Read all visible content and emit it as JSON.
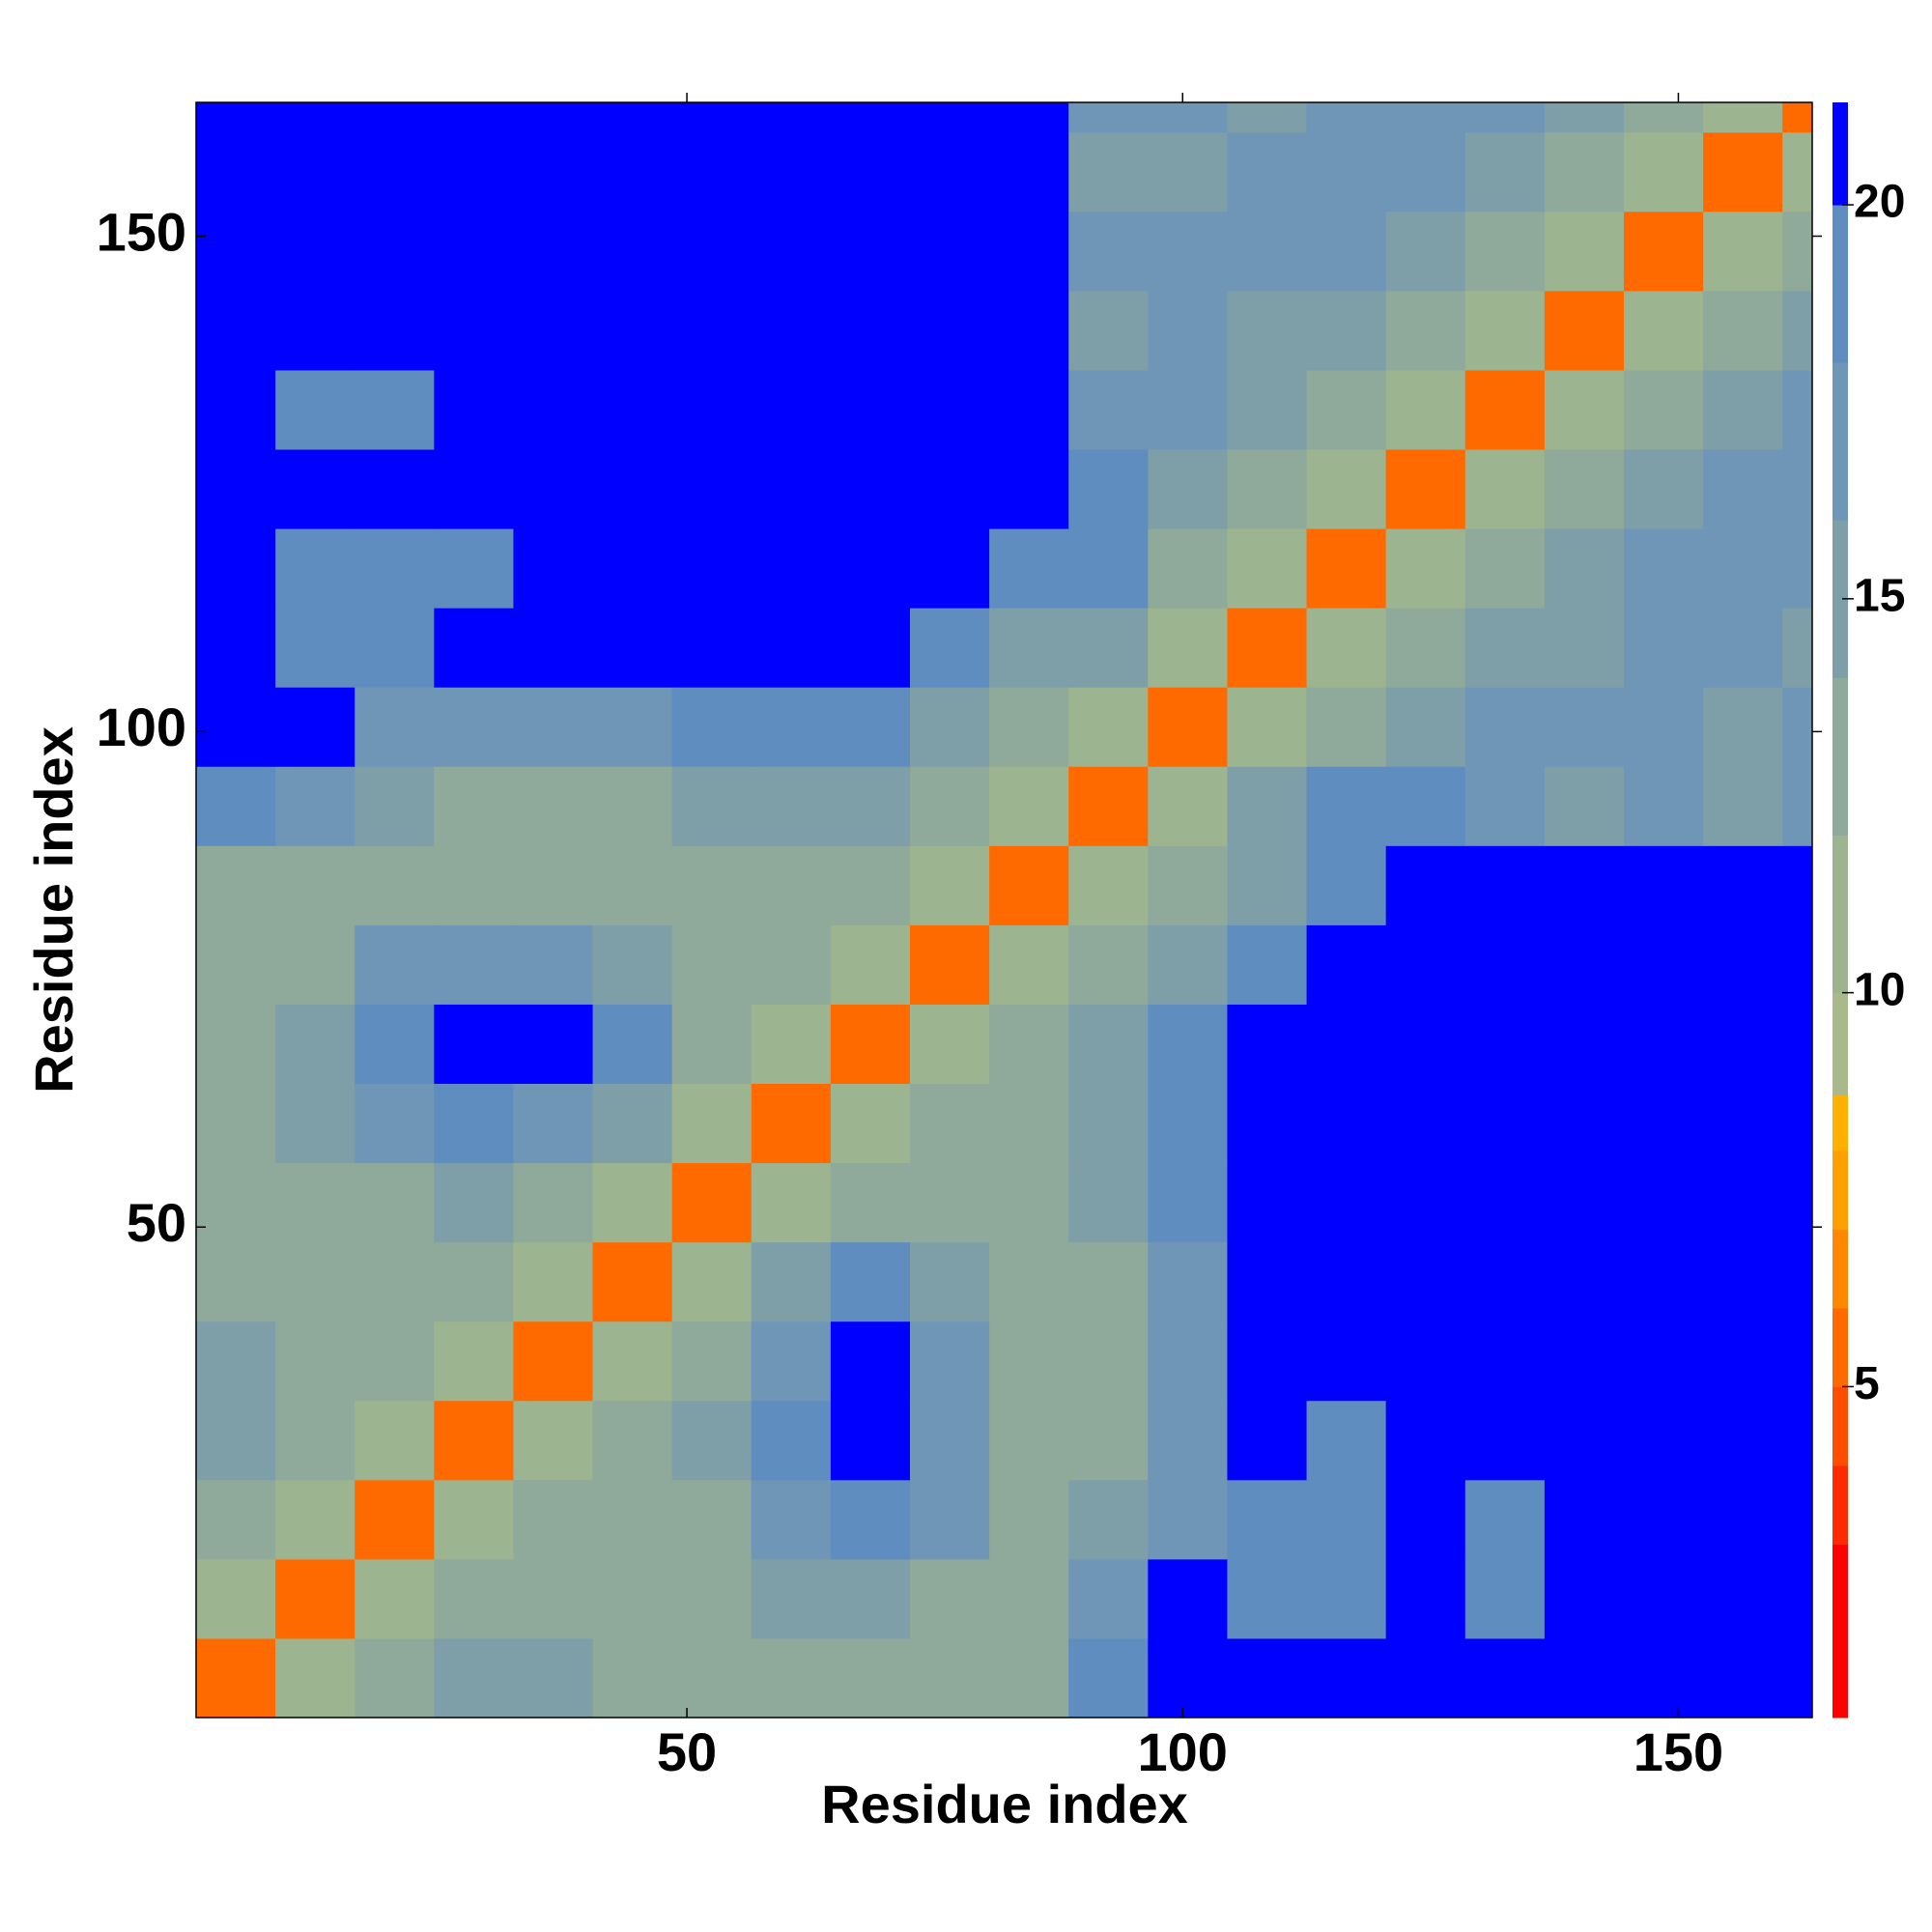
{
  "chart_data": {
    "type": "heatmap",
    "xlabel": "Residue index",
    "ylabel": "Residue index",
    "x_edges": [
      0.5,
      8.5,
      16.5,
      24.5,
      32.5,
      40.5,
      48.5,
      56.5,
      64.5,
      72.5,
      80.5,
      88.5,
      96.5,
      104.5,
      112.5,
      120.5,
      128.5,
      136.5,
      144.5,
      152.5,
      160.5,
      163.5
    ],
    "y_edges": [
      0.5,
      8.5,
      16.5,
      24.5,
      32.5,
      40.5,
      48.5,
      56.5,
      64.5,
      72.5,
      80.5,
      88.5,
      96.5,
      104.5,
      112.5,
      120.5,
      128.5,
      136.5,
      144.5,
      152.5,
      160.5,
      163.5
    ],
    "z": [
      [
        5,
        10,
        13,
        14,
        14,
        13,
        13,
        12,
        13,
        13,
        13,
        18,
        21,
        21,
        21,
        21,
        21,
        21,
        21,
        21,
        21
      ],
      [
        10,
        5,
        10,
        13,
        13,
        13,
        13,
        14,
        15,
        13,
        13,
        16,
        20,
        19,
        19,
        21,
        19,
        21,
        21,
        21,
        21
      ],
      [
        13,
        10,
        5,
        10,
        13,
        13,
        13,
        17,
        19,
        17,
        13,
        14,
        17,
        19,
        19,
        21,
        19,
        21,
        20,
        20,
        21
      ],
      [
        14,
        13,
        10,
        5,
        10,
        12,
        14,
        19,
        20,
        16,
        12,
        13,
        17,
        20,
        19,
        21,
        20,
        21,
        20,
        20,
        21
      ],
      [
        14,
        13,
        13,
        10,
        5,
        10,
        13,
        17,
        20,
        17,
        12,
        13,
        17,
        21,
        20,
        21,
        21,
        21,
        21,
        21,
        21
      ],
      [
        13,
        13,
        13,
        12,
        10,
        5,
        10,
        14,
        19,
        15,
        12,
        13,
        17,
        20,
        21,
        21,
        21,
        21,
        21,
        21,
        21
      ],
      [
        13,
        13,
        13,
        14,
        13,
        10,
        5,
        10,
        13,
        13,
        12,
        14,
        18,
        20,
        21,
        21,
        21,
        21,
        21,
        21,
        21
      ],
      [
        12,
        14,
        17,
        19,
        17,
        14,
        10,
        5,
        10,
        12,
        13,
        15,
        19,
        21,
        21,
        21,
        21,
        21,
        21,
        21,
        21
      ],
      [
        13,
        15,
        19,
        20,
        20,
        19,
        13,
        10,
        5,
        10,
        12,
        14,
        18,
        21,
        21,
        21,
        21,
        21,
        21,
        21,
        21
      ],
      [
        13,
        13,
        17,
        16,
        17,
        15,
        13,
        12,
        10,
        5,
        10,
        12,
        15,
        19,
        21,
        21,
        21,
        21,
        21,
        21,
        21
      ],
      [
        13,
        13,
        13,
        12,
        12,
        12,
        12,
        13,
        12,
        10,
        5,
        10,
        12,
        15,
        18,
        20,
        21,
        21,
        21,
        21,
        21
      ],
      [
        18,
        16,
        14,
        13,
        13,
        13,
        14,
        15,
        14,
        12,
        10,
        5,
        10,
        14,
        19,
        18,
        16,
        15,
        16,
        15,
        16
      ],
      [
        21,
        20,
        17,
        17,
        17,
        17,
        18,
        19,
        18,
        15,
        12,
        10,
        5,
        10,
        13,
        15,
        16,
        16,
        16,
        15,
        16
      ],
      [
        21,
        19,
        19,
        20,
        21,
        20,
        20,
        21,
        21,
        19,
        15,
        14,
        10,
        5,
        10,
        13,
        14,
        15,
        17,
        16,
        15
      ],
      [
        21,
        19,
        19,
        19,
        20,
        21,
        21,
        21,
        21,
        21,
        18,
        19,
        13,
        10,
        5,
        10,
        13,
        15,
        16,
        16,
        17
      ],
      [
        21,
        21,
        21,
        21,
        21,
        21,
        21,
        21,
        21,
        21,
        20,
        18,
        15,
        13,
        10,
        5,
        10,
        13,
        14,
        16,
        17
      ],
      [
        21,
        19,
        19,
        20,
        21,
        21,
        21,
        21,
        21,
        21,
        21,
        16,
        16,
        14,
        13,
        10,
        5,
        10,
        13,
        15,
        17
      ],
      [
        21,
        21,
        21,
        21,
        21,
        21,
        21,
        21,
        21,
        21,
        21,
        15,
        16,
        15,
        15,
        13,
        10,
        5,
        10,
        13,
        15
      ],
      [
        21,
        21,
        20,
        20,
        21,
        21,
        21,
        21,
        21,
        21,
        21,
        16,
        16,
        17,
        16,
        14,
        13,
        10,
        5,
        10,
        13
      ],
      [
        21,
        21,
        20,
        20,
        21,
        21,
        21,
        21,
        21,
        21,
        21,
        15,
        15,
        16,
        16,
        16,
        15,
        13,
        10,
        5,
        10
      ],
      [
        21,
        21,
        21,
        21,
        21,
        21,
        21,
        21,
        21,
        21,
        21,
        16,
        16,
        15,
        17,
        17,
        17,
        15,
        13,
        10,
        5
      ]
    ],
    "xlim": [
      0.5,
      163.5
    ],
    "ylim": [
      0.5,
      163.5
    ],
    "xticks": [
      50,
      100,
      150
    ],
    "yticks": [
      50,
      100,
      150
    ],
    "colorbar": {
      "clim": [
        0.8,
        21.3
      ],
      "ticks": [
        5,
        10,
        15,
        20
      ],
      "levels": [
        0.8,
        3,
        4,
        5,
        6,
        7,
        8,
        8.7,
        10,
        12,
        14,
        16,
        18,
        20,
        21.3
      ],
      "colors": [
        "#ff0000",
        "#ff2a00",
        "#ff4d00",
        "#ff6a00",
        "#ff8800",
        "#ffa000",
        "#ffb000",
        "#a9b98b",
        "#9db490",
        "#8fa99b",
        "#7f9fa8",
        "#6f96b6",
        "#5f8dc0",
        "#0000ff"
      ]
    }
  }
}
